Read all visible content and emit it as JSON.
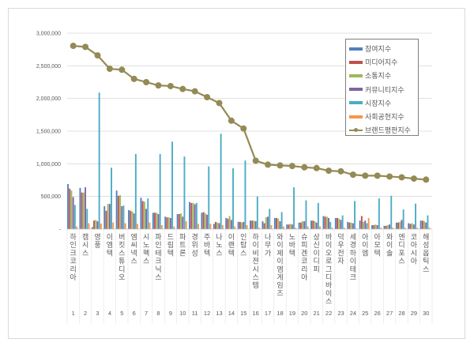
{
  "chart_data": {
    "type": "bar+line",
    "title": "",
    "xlabel": "",
    "ylabel": "",
    "ylim": [
      0,
      3000000
    ],
    "yticks": [
      "-",
      "500,000",
      "1,000,000",
      "1,500,000",
      "2,000,000",
      "2,500,000",
      "3,000,000"
    ],
    "grid": true,
    "legend_position": "upper-right-inside",
    "ranks": [
      1,
      2,
      3,
      4,
      5,
      6,
      7,
      8,
      9,
      10,
      11,
      12,
      13,
      14,
      15,
      16,
      17,
      18,
      19,
      20,
      21,
      22,
      23,
      24,
      25,
      26,
      27,
      28,
      29,
      30
    ],
    "categories": [
      "하인크코리아",
      "캠시스",
      "영풍",
      "이엠텍",
      "버킷스튜디오",
      "엠씨넥스",
      "시노펙스",
      "파인테크닉스",
      "드림텍",
      "파트론",
      "경위성",
      "주바텍",
      "나노스",
      "이랜텍",
      "인탑스",
      "하이비젼시스템",
      "나무가",
      "와이제이엠게임즈",
      "노바텍",
      "슈피겐코리아",
      "상신이디피",
      "바이오로그디바이스",
      "덕우전자",
      "세경하이테크",
      "아이엠",
      "아모텍",
      "와이솔",
      "엔디포스",
      "코아시아",
      "해성옵틱스"
    ],
    "series": [
      {
        "name": "참여지수",
        "color": "#4f81bd",
        "type": "bar",
        "values": [
          690000,
          630000,
          30000,
          350000,
          590000,
          290000,
          480000,
          250000,
          190000,
          230000,
          415000,
          250000,
          80000,
          170000,
          110000,
          130000,
          120000,
          170000,
          70000,
          100000,
          130000,
          200000,
          170000,
          110000,
          130000,
          60000,
          50000,
          100000,
          90000,
          130000
        ]
      },
      {
        "name": "미디어지수",
        "color": "#c0504d",
        "type": "bar",
        "values": [
          620000,
          560000,
          130000,
          280000,
          510000,
          280000,
          430000,
          250000,
          180000,
          230000,
          400000,
          260000,
          110000,
          160000,
          110000,
          130000,
          90000,
          170000,
          70000,
          100000,
          130000,
          190000,
          170000,
          100000,
          200000,
          60000,
          50000,
          100000,
          80000,
          130000
        ]
      },
      {
        "name": "소통지수",
        "color": "#9bbb59",
        "type": "bar",
        "values": [
          590000,
          560000,
          140000,
          385000,
          520000,
          270000,
          420000,
          250000,
          180000,
          240000,
          400000,
          240000,
          100000,
          200000,
          100000,
          130000,
          180000,
          160000,
          80000,
          120000,
          120000,
          190000,
          160000,
          100000,
          110000,
          70000,
          60000,
          110000,
          90000,
          120000
        ]
      },
      {
        "name": "커뮤니티지수",
        "color": "#8064a2",
        "type": "bar",
        "values": [
          490000,
          640000,
          120000,
          385000,
          350000,
          240000,
          310000,
          230000,
          170000,
          190000,
          380000,
          220000,
          90000,
          140000,
          110000,
          120000,
          190000,
          120000,
          70000,
          120000,
          100000,
          170000,
          140000,
          90000,
          130000,
          60000,
          70000,
          140000,
          70000,
          100000
        ]
      },
      {
        "name": "시장지수",
        "color": "#4bacc6",
        "type": "bar",
        "values": [
          370000,
          310000,
          2090000,
          940000,
          360000,
          1150000,
          470000,
          1150000,
          1340000,
          1110000,
          400000,
          960000,
          1460000,
          930000,
          1050000,
          500000,
          310000,
          260000,
          640000,
          440000,
          400000,
          110000,
          210000,
          430000,
          90000,
          470000,
          510000,
          300000,
          390000,
          210000
        ]
      },
      {
        "name": "사회공헌지수",
        "color": "#f79646",
        "type": "bar",
        "values": [
          40000,
          90000,
          85000,
          100000,
          90000,
          80000,
          100000,
          60000,
          40000,
          120000,
          80000,
          80000,
          60000,
          40000,
          60000,
          20000,
          60000,
          40000,
          20000,
          40000,
          40000,
          20000,
          20000,
          10000,
          170000,
          20000,
          20000,
          20000,
          20000,
          20000
        ]
      },
      {
        "name": "브랜드평판지수",
        "color": "#948a54",
        "type": "line",
        "values": [
          2806000,
          2790000,
          2660000,
          2455000,
          2440000,
          2300000,
          2250000,
          2200000,
          2190000,
          2145000,
          2110000,
          2020000,
          1930000,
          1660000,
          1540000,
          1047000,
          987000,
          975000,
          966000,
          946000,
          934000,
          894000,
          885000,
          833000,
          818000,
          818000,
          805000,
          793000,
          773000,
          757000
        ]
      }
    ]
  },
  "legend": {
    "items": [
      {
        "label": "참여지수",
        "color": "#4f81bd",
        "kind": "bar"
      },
      {
        "label": "미디어지수",
        "color": "#c0504d",
        "kind": "bar"
      },
      {
        "label": "소통지수",
        "color": "#9bbb59",
        "kind": "bar"
      },
      {
        "label": "커뮤니티지수",
        "color": "#8064a2",
        "kind": "bar"
      },
      {
        "label": "시장지수",
        "color": "#4bacc6",
        "kind": "bar"
      },
      {
        "label": "사회공헌지수",
        "color": "#f79646",
        "kind": "bar"
      },
      {
        "label": "브랜드평판지수",
        "color": "#948a54",
        "kind": "line"
      }
    ]
  },
  "colors": {
    "grid": "#d9d9d9",
    "axis_text": "#595959",
    "frame": "#d9d9d9",
    "legend_border": "#7f7f7f"
  }
}
